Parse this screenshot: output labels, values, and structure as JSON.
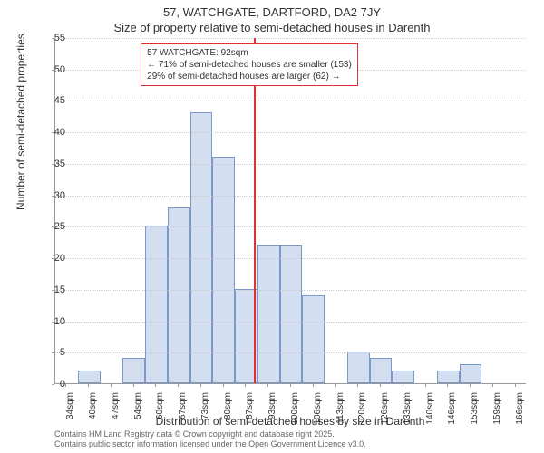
{
  "chart": {
    "type": "histogram",
    "title_main": "57, WATCHGATE, DARTFORD, DA2 7JY",
    "title_sub": "Size of property relative to semi-detached houses in Darenth",
    "y_axis_label": "Number of semi-detached properties",
    "x_axis_label": "Distribution of semi-detached houses by size in Darenth",
    "ylim": [
      0,
      55
    ],
    "ytick_step": 5,
    "y_ticks": [
      0,
      5,
      10,
      15,
      20,
      25,
      30,
      35,
      40,
      45,
      50,
      55
    ],
    "x_categories": [
      "34sqm",
      "40sqm",
      "47sqm",
      "54sqm",
      "60sqm",
      "67sqm",
      "73sqm",
      "80sqm",
      "87sqm",
      "93sqm",
      "100sqm",
      "106sqm",
      "113sqm",
      "120sqm",
      "126sqm",
      "133sqm",
      "140sqm",
      "146sqm",
      "153sqm",
      "159sqm",
      "166sqm"
    ],
    "bar_values": [
      0,
      2,
      0,
      4,
      25,
      28,
      43,
      36,
      15,
      22,
      22,
      14,
      0,
      5,
      4,
      2,
      0,
      2,
      3,
      0,
      0
    ],
    "bar_color": "#d3dff0",
    "bar_border_color": "#7a99c9",
    "grid_color": "#cccccc",
    "background_color": "#ffffff",
    "marker_line_value": "92sqm",
    "marker_line_color": "#e03030",
    "marker_line_position": 9,
    "annotation_line1": "← 71% of semi-detached houses are smaller (153)",
    "annotation_line2_prefix": "57 WATCHGATE: 92sqm",
    "annotation_line2": "29% of semi-detached houses are larger (62) →",
    "annotation_border_color": "#e03030",
    "footer_line1": "Contains HM Land Registry data © Crown copyright and database right 2025.",
    "footer_line2": "Contains public sector information licensed under the Open Government Licence v3.0.",
    "title_fontsize": 13,
    "label_fontsize": 12,
    "tick_fontsize": 11,
    "annotation_fontsize": 10,
    "footer_fontsize": 9
  }
}
